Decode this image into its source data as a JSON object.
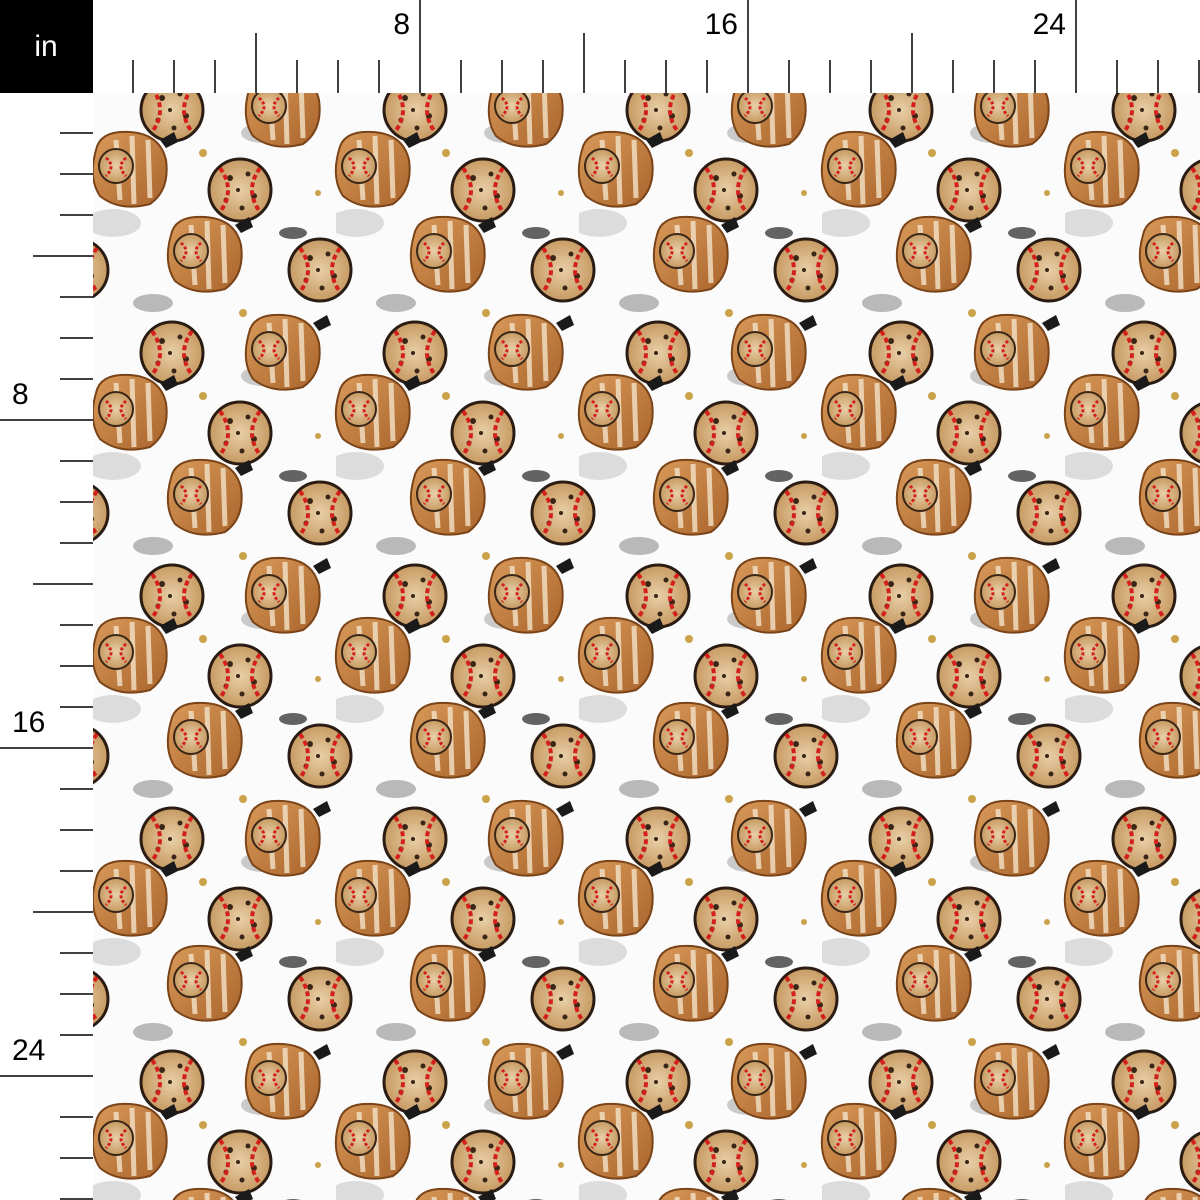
{
  "unit": "in",
  "ruler": {
    "top_labels": [
      "8",
      "16",
      "24"
    ],
    "left_labels": [
      "8",
      "16",
      "24"
    ]
  }
}
